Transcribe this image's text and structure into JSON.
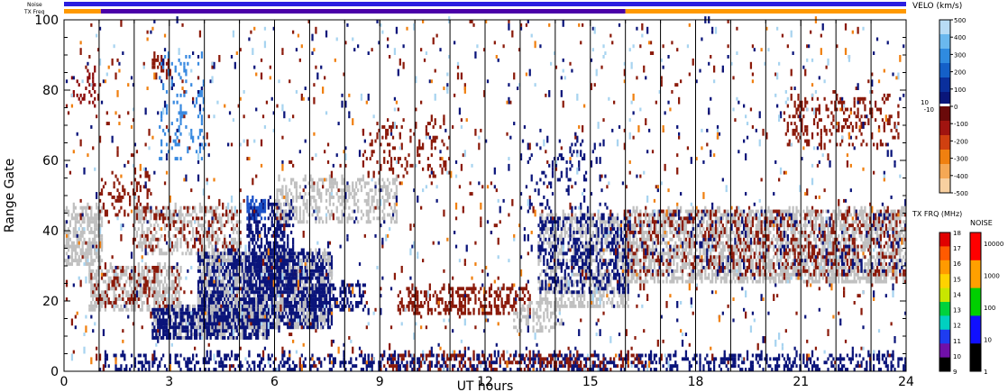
{
  "chart_data": {
    "type": "heatmap",
    "xlabel": "UT hours",
    "ylabel": "Range Gate",
    "xlim": [
      0,
      24
    ],
    "ylim": [
      0,
      100
    ],
    "x_ticks": [
      "0",
      "3",
      "6",
      "9",
      "12",
      "15",
      "18",
      "21",
      "24"
    ],
    "y_ticks": [
      "0",
      "20",
      "40",
      "60",
      "80",
      "100"
    ],
    "hour_gridlines": true,
    "top_strips": {
      "noise_label": "Noise",
      "txfreq_label": "TX Freq",
      "noise_color": "#2a1ee0",
      "txfreq_segments": [
        {
          "start": 0,
          "end": 1.05,
          "color": "#ff9900"
        },
        {
          "start": 1.05,
          "end": 16.0,
          "color": "#4a00a8"
        },
        {
          "start": 16.0,
          "end": 24,
          "color": "#ff9900"
        }
      ]
    },
    "velocity_scale": {
      "title": "VELO (km/s)",
      "labels": [
        "500",
        "400",
        "300",
        "200",
        "100",
        "0",
        "-100",
        "-200",
        "-300",
        "-400",
        "-500"
      ],
      "near_zero_labels": [
        "10",
        "-10"
      ],
      "colors": [
        "#b8dcf5",
        "#6ab8ee",
        "#2f8be0",
        "#1460c8",
        "#0a2f9c",
        "#0a167a",
        "#6a0a0a",
        "#a01410",
        "#d04010",
        "#f08010",
        "#f5a855",
        "#f8d0a0"
      ]
    },
    "txfreq_scale": {
      "title": "TX FRQ (MHz)",
      "labels": [
        "18",
        "17",
        "16",
        "15",
        "14",
        "13",
        "12",
        "11",
        "10",
        "9"
      ],
      "colors": [
        "#e00000",
        "#ff5a00",
        "#ff9a00",
        "#ffd200",
        "#c8e600",
        "#00d23c",
        "#00d0c0",
        "#1e3cf0",
        "#7010a8",
        "#000000"
      ]
    },
    "noise_scale": {
      "title": "NOISE",
      "labels": [
        "10000",
        "1000",
        "100",
        "10",
        "1"
      ],
      "colors": [
        "#ff0000",
        "#ffa000",
        "#00d000",
        "#1010ff",
        "#000000"
      ]
    },
    "regions": [
      {
        "x0": 0.0,
        "x1": 1.1,
        "y0": 30,
        "y1": 47,
        "color": "#c0c0c0",
        "density": 0.55
      },
      {
        "x0": 0.2,
        "x1": 0.9,
        "y0": 75,
        "y1": 86,
        "color": "#8b0a0a",
        "density": 0.18
      },
      {
        "x0": 0.7,
        "x1": 3.3,
        "y0": 17,
        "y1": 30,
        "color": "#c0c0c0",
        "density": 0.5
      },
      {
        "x0": 0.7,
        "x1": 3.3,
        "y0": 18,
        "y1": 30,
        "color": "#8b1a0a",
        "density": 0.15
      },
      {
        "x0": 1.0,
        "x1": 2.5,
        "y0": 44,
        "y1": 56,
        "color": "#8b1a0a",
        "density": 0.2
      },
      {
        "x0": 2.0,
        "x1": 5.0,
        "y0": 33,
        "y1": 47,
        "color": "#c0c0c0",
        "density": 0.3
      },
      {
        "x0": 2.0,
        "x1": 5.0,
        "y0": 34,
        "y1": 47,
        "color": "#8b1a0a",
        "density": 0.12
      },
      {
        "x0": 2.5,
        "x1": 3.0,
        "y0": 83,
        "y1": 90,
        "color": "#8b1a0a",
        "density": 0.3
      },
      {
        "x0": 2.7,
        "x1": 4.0,
        "y0": 60,
        "y1": 90,
        "color": "#3a8ae0",
        "density": 0.12
      },
      {
        "x0": 2.5,
        "x1": 5.8,
        "y0": 9,
        "y1": 19,
        "color": "#c0c0c0",
        "density": 0.45
      },
      {
        "x0": 2.5,
        "x1": 5.8,
        "y0": 9,
        "y1": 18,
        "color": "#0a147a",
        "density": 0.55
      },
      {
        "x0": 3.8,
        "x1": 7.6,
        "y0": 12,
        "y1": 34,
        "color": "#0a147a",
        "density": 0.7
      },
      {
        "x0": 3.8,
        "x1": 7.6,
        "y0": 12,
        "y1": 34,
        "color": "#c0c0c0",
        "density": 0.25
      },
      {
        "x0": 5.2,
        "x1": 6.5,
        "y0": 22,
        "y1": 48,
        "color": "#0a147a",
        "density": 0.45
      },
      {
        "x0": 5.2,
        "x1": 5.7,
        "y0": 43,
        "y1": 49,
        "color": "#1a50c8",
        "density": 0.5
      },
      {
        "x0": 7.0,
        "x1": 8.6,
        "y0": 17,
        "y1": 25,
        "color": "#0a147a",
        "density": 0.35
      },
      {
        "x0": 6.0,
        "x1": 9.5,
        "y0": 42,
        "y1": 55,
        "color": "#c0c0c0",
        "density": 0.35
      },
      {
        "x0": 8.5,
        "x1": 11.0,
        "y0": 55,
        "y1": 72,
        "color": "#8b1a0a",
        "density": 0.12
      },
      {
        "x0": 9.5,
        "x1": 13.3,
        "y0": 16,
        "y1": 24,
        "color": "#8b1a0a",
        "density": 0.35
      },
      {
        "x0": 12.8,
        "x1": 14.2,
        "y0": 11,
        "y1": 20,
        "color": "#c0c0c0",
        "density": 0.3
      },
      {
        "x0": 13.5,
        "x1": 16.1,
        "y0": 18,
        "y1": 45,
        "color": "#c0c0c0",
        "density": 0.45
      },
      {
        "x0": 13.5,
        "x1": 16.1,
        "y0": 22,
        "y1": 44,
        "color": "#0a147a",
        "density": 0.3
      },
      {
        "x0": 13.0,
        "x1": 15.5,
        "y0": 45,
        "y1": 66,
        "color": "#0a147a",
        "density": 0.08
      },
      {
        "x0": 16.0,
        "x1": 24.0,
        "y0": 25,
        "y1": 46,
        "color": "#c0c0c0",
        "density": 0.55
      },
      {
        "x0": 16.0,
        "x1": 24.0,
        "y0": 27,
        "y1": 46,
        "color": "#8b1a0a",
        "density": 0.18
      },
      {
        "x0": 16.0,
        "x1": 24.0,
        "y0": 27,
        "y1": 46,
        "color": "#0a147a",
        "density": 0.05
      },
      {
        "x0": 20.5,
        "x1": 23.8,
        "y0": 64,
        "y1": 78,
        "color": "#8b1a0a",
        "density": 0.18
      },
      {
        "x0": 1.0,
        "x1": 24.0,
        "y0": 0,
        "y1": 5,
        "color": "#0a147a",
        "density": 0.3
      },
      {
        "x0": 9.0,
        "x1": 16.5,
        "y0": 0,
        "y1": 5,
        "color": "#8b1a0a",
        "density": 0.25
      },
      {
        "x0": 0.0,
        "x1": 24.0,
        "y0": 0,
        "y1": 100,
        "color": "#8b1a0a",
        "density": 0.012
      },
      {
        "x0": 0.0,
        "x1": 24.0,
        "y0": 0,
        "y1": 100,
        "color": "#0a147a",
        "density": 0.01
      },
      {
        "x0": 0.0,
        "x1": 24.0,
        "y0": 0,
        "y1": 100,
        "color": "#a8d4f0",
        "density": 0.008
      },
      {
        "x0": 0.0,
        "x1": 24.0,
        "y0": 0,
        "y1": 100,
        "color": "#f08010",
        "density": 0.004
      }
    ]
  }
}
